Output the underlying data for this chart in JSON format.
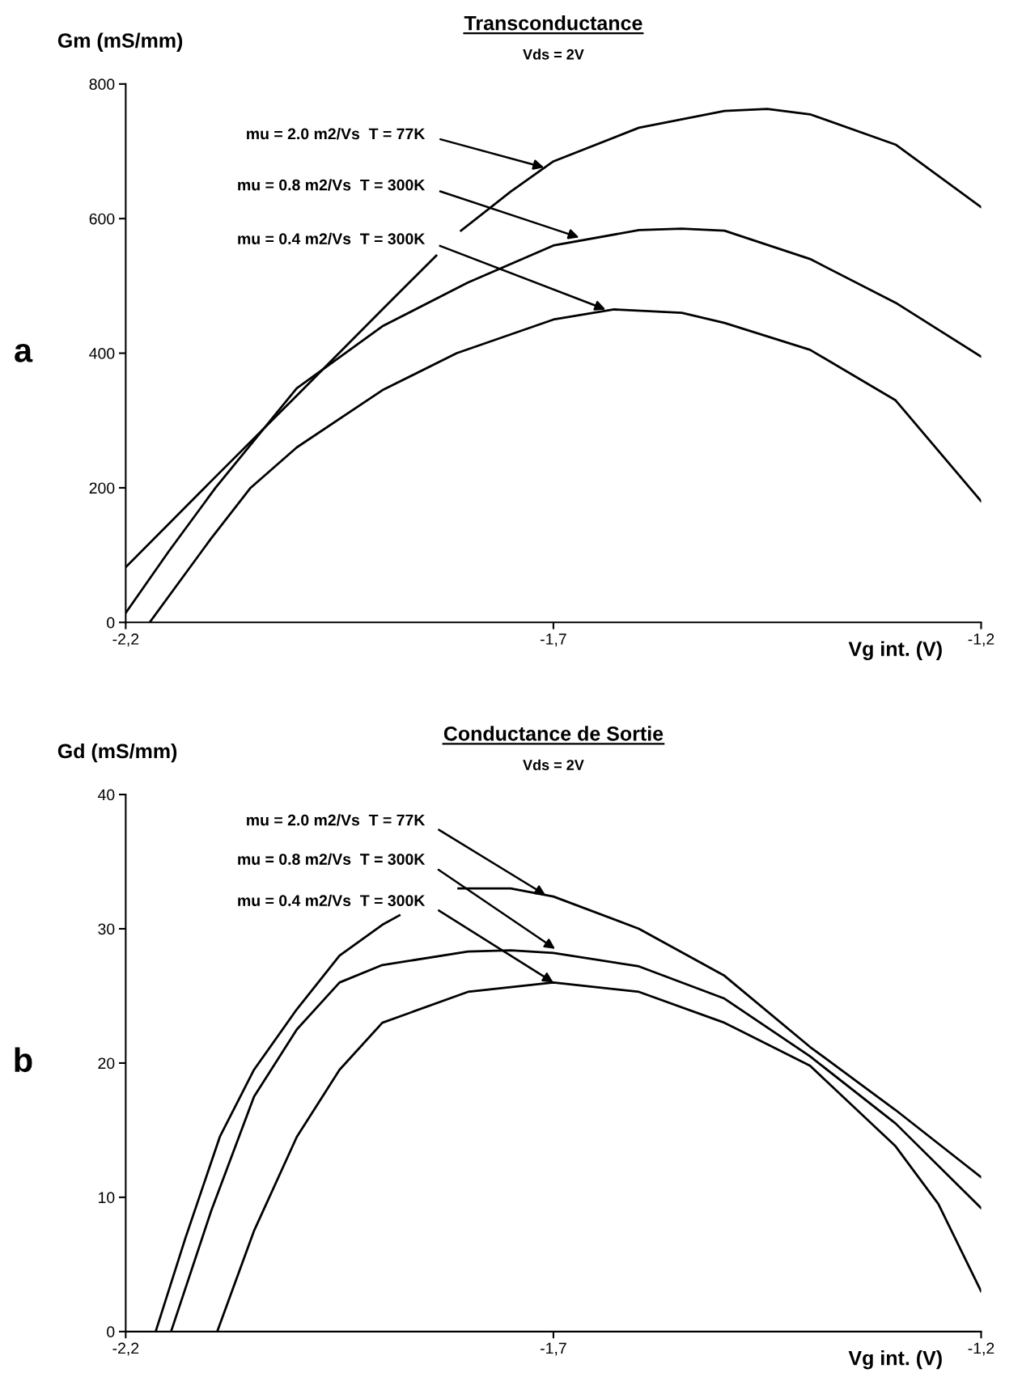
{
  "chart_data": [
    {
      "type": "line",
      "title": "Transconductance",
      "subtitle": "Vds = 2V",
      "xlabel": "Vg int. (V)",
      "ylabel": "Gm (mS/mm)",
      "xlim": [
        -2.2,
        -1.2
      ],
      "ylim": [
        0,
        800
      ],
      "xticks": [
        {
          "value": -2.2,
          "label": "-2,2"
        },
        {
          "value": -1.7,
          "label": "-1,7"
        },
        {
          "value": -1.2,
          "label": "-1,2"
        }
      ],
      "yticks": [
        0,
        200,
        400,
        600,
        800
      ],
      "grid": false,
      "legend": false,
      "marker": "none",
      "line_style": "solid",
      "series": [
        {
          "color": "#000000",
          "x": [
            -2.2,
            -2.1,
            -2.0,
            -1.9,
            -1.837,
            -1.82,
            -1.808,
            -1.75,
            -1.7,
            -1.6,
            -1.5,
            -1.45,
            -1.4,
            -1.3,
            -1.2
          ],
          "values": [
            82,
            210,
            337,
            465,
            545,
            null,
            582,
            640,
            685,
            735,
            760,
            763,
            755,
            710,
            617
          ]
        },
        {
          "color": "#000000",
          "x": [
            -2.2,
            -2.15,
            -2.095,
            -2.0,
            -1.9,
            -1.8,
            -1.7,
            -1.6,
            -1.55,
            -1.5,
            -1.4,
            -1.3,
            -1.2
          ],
          "values": [
            14,
            105,
            200,
            348,
            440,
            505,
            560,
            583,
            585,
            582,
            540,
            475,
            395
          ]
        },
        {
          "color": "#000000",
          "x": [
            -2.172,
            -2.1,
            -2.054,
            -2.0,
            -1.9,
            -1.813,
            -1.7,
            -1.629,
            -1.55,
            -1.5,
            -1.4,
            -1.3,
            -1.2
          ],
          "values": [
            0,
            125,
            200,
            260,
            345,
            400,
            450,
            465,
            460,
            445,
            405,
            330,
            180
          ]
        }
      ],
      "annotations": [
        "a",
        {
          "text": "mu = 2.0 m2/Vs  T = 77K",
          "x": -1.711,
          "y": 676
        },
        {
          "text": "mu = 0.8 m2/Vs  T = 300K",
          "x": -1.67,
          "y": 572
        },
        {
          "text": "mu = 0.4 m2/Vs  T = 300K",
          "x": -1.639,
          "y": 465
        }
      ]
    },
    {
      "type": "line",
      "title": "Conductance de Sortie",
      "subtitle": "Vds = 2V",
      "xlabel": "Vg int. (V)",
      "ylabel": "Gd (mS/mm)",
      "xlim": [
        -2.2,
        -1.2
      ],
      "ylim": [
        0,
        40
      ],
      "xticks": [
        {
          "value": -2.2,
          "label": "-2,2"
        },
        {
          "value": -1.7,
          "label": "-1,7"
        },
        {
          "value": -1.2,
          "label": "-1,2"
        }
      ],
      "yticks": [
        0,
        10,
        20,
        30,
        40
      ],
      "grid": false,
      "legend": false,
      "marker": "none",
      "line_style": "solid",
      "series": [
        {
          "color": "#000000",
          "x": [
            -2.165,
            -2.13,
            -2.09,
            -2.05,
            -2.0,
            -1.95,
            -1.9,
            -1.88,
            -1.85,
            -1.811,
            -1.75,
            -1.7,
            -1.6,
            -1.5,
            -1.4,
            -1.3,
            -1.2
          ],
          "values": [
            0,
            7,
            14.5,
            19.5,
            24,
            28,
            30.3,
            31,
            null,
            33.0,
            33.0,
            32.4,
            30,
            26.5,
            21.2,
            16.5,
            11.5
          ]
        },
        {
          "color": "#000000",
          "x": [
            -2.147,
            -2.1,
            -2.05,
            -2.0,
            -1.95,
            -1.9,
            -1.8,
            -1.75,
            -1.7,
            -1.6,
            -1.5,
            -1.4,
            -1.3,
            -1.2
          ],
          "values": [
            0,
            9,
            17.5,
            22.5,
            26,
            27.3,
            28.3,
            28.4,
            28.2,
            27.2,
            24.8,
            20.5,
            15.5,
            9.2
          ]
        },
        {
          "color": "#000000",
          "x": [
            -2.093,
            -2.05,
            -2.0,
            -1.95,
            -1.9,
            -1.8,
            -1.7,
            -1.6,
            -1.5,
            -1.4,
            -1.3,
            -1.25,
            -1.2
          ],
          "values": [
            0,
            7.5,
            14.5,
            19.5,
            23,
            25.3,
            26,
            25.3,
            23,
            19.8,
            13.8,
            9.5,
            3.0
          ]
        }
      ],
      "annotations": [
        "b",
        {
          "text": "mu = 2.0 m2/Vs  T = 77K",
          "x": -1.709,
          "y": 32.5
        },
        {
          "text": "mu = 0.8 m2/Vs  T = 300K",
          "x": -1.698,
          "y": 28.5
        },
        {
          "text": "mu = 0.4 m2/Vs  T = 300K",
          "x": -1.7,
          "y": 26
        }
      ]
    }
  ]
}
